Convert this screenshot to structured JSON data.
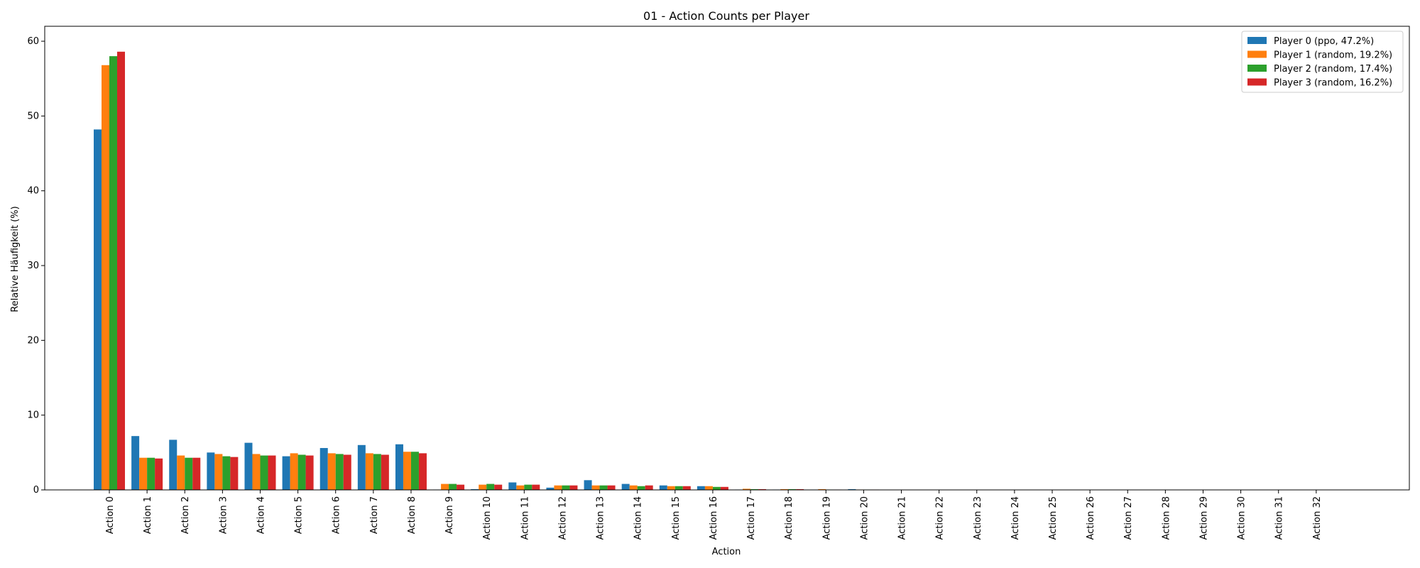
{
  "chart_data": {
    "type": "bar",
    "title": "01 - Action Counts per Player",
    "xlabel": "Action",
    "ylabel": "Relative Häufigkeit (%)",
    "ylim": [
      0,
      62
    ],
    "yticks": [
      0,
      10,
      20,
      30,
      40,
      50,
      60
    ],
    "grid": false,
    "legend_position": "top-right",
    "categories": [
      "Action 0",
      "Action 1",
      "Action 2",
      "Action 3",
      "Action 4",
      "Action 5",
      "Action 6",
      "Action 7",
      "Action 8",
      "Action 9",
      "Action 10",
      "Action 11",
      "Action 12",
      "Action 13",
      "Action 14",
      "Action 15",
      "Action 16",
      "Action 17",
      "Action 18",
      "Action 19",
      "Action 20",
      "Action 21",
      "Action 22",
      "Action 23",
      "Action 24",
      "Action 25",
      "Action 26",
      "Action 27",
      "Action 28",
      "Action 29",
      "Action 30",
      "Action 31",
      "Action 32"
    ],
    "series": [
      {
        "name": "Player 0 (ppo, 47.2%)",
        "color": "#1f77b4",
        "values": [
          48.2,
          7.2,
          6.7,
          5.0,
          6.3,
          4.5,
          5.6,
          6.0,
          6.1,
          0.05,
          0.1,
          1.0,
          0.3,
          1.3,
          0.8,
          0.6,
          0.5,
          0.05,
          0.05,
          0.05,
          0.1,
          0,
          0,
          0,
          0,
          0,
          0,
          0,
          0,
          0,
          0,
          0,
          0
        ]
      },
      {
        "name": "Player 1 (random, 19.2%)",
        "color": "#ff7f0e",
        "values": [
          56.8,
          4.3,
          4.6,
          4.8,
          4.8,
          4.9,
          4.9,
          4.9,
          5.1,
          0.8,
          0.7,
          0.6,
          0.6,
          0.6,
          0.6,
          0.5,
          0.5,
          0.15,
          0.1,
          0.1,
          0.05,
          0,
          0,
          0,
          0,
          0,
          0,
          0,
          0,
          0,
          0,
          0,
          0
        ]
      },
      {
        "name": "Player 2 (random, 17.4%)",
        "color": "#2ca02c",
        "values": [
          58.0,
          4.3,
          4.3,
          4.5,
          4.6,
          4.7,
          4.8,
          4.8,
          5.1,
          0.8,
          0.8,
          0.7,
          0.6,
          0.6,
          0.5,
          0.5,
          0.4,
          0.1,
          0.1,
          0.05,
          0.05,
          0,
          0,
          0,
          0,
          0,
          0,
          0,
          0,
          0,
          0,
          0,
          0
        ]
      },
      {
        "name": "Player 3 (random, 16.2%)",
        "color": "#d62728",
        "values": [
          58.6,
          4.2,
          4.3,
          4.4,
          4.6,
          4.6,
          4.7,
          4.7,
          4.9,
          0.7,
          0.7,
          0.7,
          0.6,
          0.6,
          0.6,
          0.5,
          0.4,
          0.1,
          0.1,
          0.05,
          0.05,
          0,
          0,
          0,
          0,
          0,
          0,
          0,
          0,
          0,
          0,
          0,
          0
        ]
      }
    ]
  }
}
